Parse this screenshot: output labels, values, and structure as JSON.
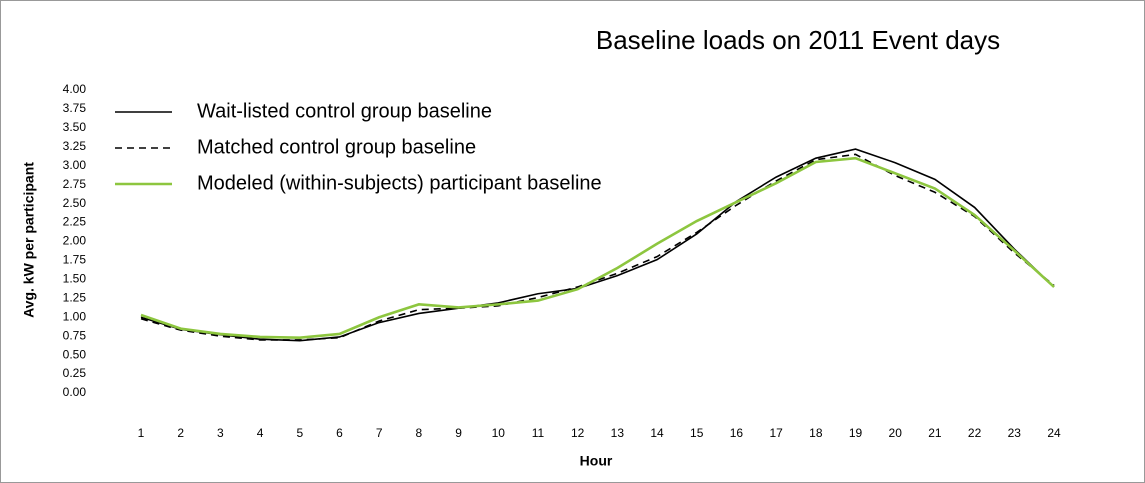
{
  "chart_data": {
    "type": "line",
    "title": "Baseline loads on 2011 Event days",
    "x_label": "Hour",
    "y_label": "Avg. kW per participant",
    "categories": [
      "1",
      "2",
      "3",
      "4",
      "5",
      "6",
      "7",
      "8",
      "9",
      "10",
      "11",
      "12",
      "13",
      "14",
      "15",
      "16",
      "17",
      "18",
      "19",
      "20",
      "21",
      "22",
      "23",
      "24"
    ],
    "series": [
      {
        "name": "Wait-listed control group baseline",
        "color": "#000000",
        "linestyle": "solid",
        "values": [
          1.0,
          0.84,
          0.77,
          0.71,
          0.69,
          0.74,
          0.93,
          1.05,
          1.12,
          1.19,
          1.31,
          1.38,
          1.55,
          1.76,
          2.1,
          2.53,
          2.85,
          3.1,
          3.22,
          3.04,
          2.82,
          2.45,
          1.9,
          1.4
        ]
      },
      {
        "name": "Matched control group baseline",
        "color": "#000000",
        "linestyle": "dashed",
        "values": [
          0.98,
          0.83,
          0.75,
          0.7,
          0.7,
          0.73,
          0.95,
          1.1,
          1.12,
          1.15,
          1.26,
          1.4,
          1.58,
          1.8,
          2.12,
          2.48,
          2.8,
          3.08,
          3.15,
          2.87,
          2.65,
          2.33,
          1.85,
          1.42
        ]
      },
      {
        "name": "Modeled (within-subjects) participant baseline",
        "color": "#8dc63f",
        "linestyle": "solid",
        "values": [
          1.03,
          0.85,
          0.78,
          0.74,
          0.73,
          0.78,
          1.0,
          1.17,
          1.13,
          1.17,
          1.22,
          1.37,
          1.65,
          1.97,
          2.27,
          2.52,
          2.77,
          3.05,
          3.1,
          2.9,
          2.7,
          2.35,
          1.88,
          1.4
        ]
      }
    ],
    "ylim": [
      0,
      4
    ],
    "yticks": [
      {
        "value": 0,
        "label": "0.00"
      },
      {
        "value": 0.25,
        "label": "0.25"
      },
      {
        "value": 0.5,
        "label": "0.50"
      },
      {
        "value": 0.75,
        "label": "0.75"
      },
      {
        "value": 1,
        "label": "1.00"
      },
      {
        "value": 1.25,
        "label": "1.25"
      },
      {
        "value": 1.5,
        "label": "1.50"
      },
      {
        "value": 1.75,
        "label": "1.75"
      },
      {
        "value": 2,
        "label": "2.00"
      },
      {
        "value": 2.25,
        "label": "2.25"
      },
      {
        "value": 2.5,
        "label": "2.50"
      },
      {
        "value": 2.75,
        "label": "2.75"
      },
      {
        "value": 3,
        "label": "3.00"
      },
      {
        "value": 3.25,
        "label": "3.25"
      },
      {
        "value": 3.5,
        "label": "3.50"
      },
      {
        "value": 3.75,
        "label": "3.75"
      },
      {
        "value": 4,
        "label": "4.00"
      }
    ],
    "grid": false,
    "legend": "upper left"
  }
}
